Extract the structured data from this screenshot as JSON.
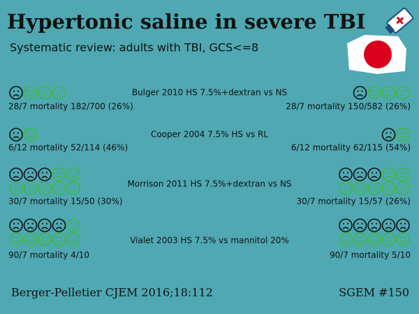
{
  "title": "Hypertonic saline in severe TBI",
  "subtitle": "Systematic review: adults with TBI, GCS<=8",
  "studies": [
    {
      "label": "Bulger 2010 HS 7.5%+dextran vs NS",
      "left": {
        "mortality": "28/7 mortality 182/700 (26%)",
        "sad": 1,
        "happy": 3
      },
      "right": {
        "mortality": "28/7 mortality 150/582 (26%)",
        "sad": 1,
        "happy": 3
      }
    },
    {
      "label": "Cooper 2004 7.5% HS vs RL",
      "left": {
        "mortality": "6/12 mortality 52/114 (46%)",
        "sad": 1,
        "happy": 1
      },
      "right": {
        "mortality": "6/12 mortality 62/115 (54%)",
        "sad": 1,
        "happy": 1
      }
    },
    {
      "label": "Morrison 2011 HS 7.5%+dextran vs NS",
      "left": {
        "mortality": "30/7 mortality 15/50 (30%)",
        "sad": 3,
        "happy": 7
      },
      "right": {
        "mortality": "30/7 mortality 15/57 (26%)",
        "sad": 3,
        "happy": 7
      }
    },
    {
      "label": "Vialet 2003 HS 7.5% vs mannitol 20%",
      "left": {
        "mortality": "90/7 mortality 4/10",
        "sad": 4,
        "happy": 6
      },
      "right": {
        "mortality": "90/7 mortality 5/10",
        "sad": 5,
        "happy": 5
      }
    }
  ],
  "footer": {
    "left": "Berger-Pelletier CJEM 2016;18:112",
    "right": "SGEM #150"
  }
}
